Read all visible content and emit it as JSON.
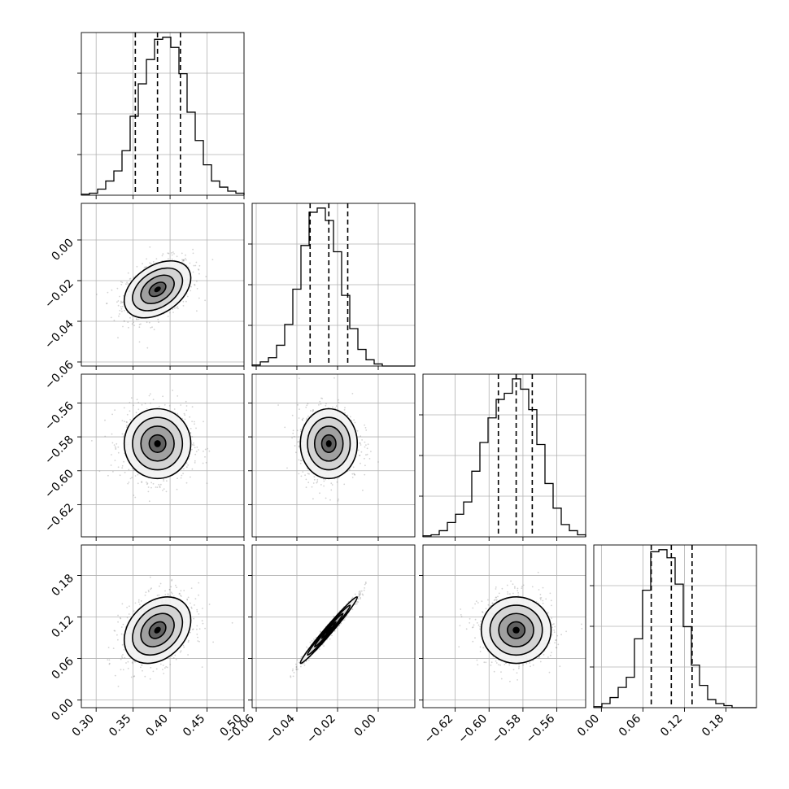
{
  "chart_data": {
    "type": "corner",
    "params": [
      {
        "range": [
          0.28,
          0.5
        ],
        "ticks": [
          0.3,
          0.35,
          0.4,
          0.45,
          0.5
        ],
        "tick_labels": [
          "0.30",
          "0.35",
          "0.40",
          "0.45",
          "0.50"
        ],
        "quantiles": [
          0.353,
          0.383,
          0.414
        ]
      },
      {
        "range": [
          -0.062,
          0.018
        ],
        "ticks": [
          -0.06,
          -0.04,
          -0.02,
          0.0
        ],
        "tick_labels": [
          "−0.06",
          "−0.04",
          "−0.02",
          "0.00"
        ],
        "quantiles": [
          -0.0335,
          -0.0243,
          -0.015
        ]
      },
      {
        "range": [
          -0.639,
          -0.543
        ],
        "ticks": [
          -0.62,
          -0.6,
          -0.58,
          -0.56
        ],
        "tick_labels": [
          "−0.62",
          "−0.60",
          "−0.58",
          "−0.56"
        ],
        "quantiles": [
          -0.5945,
          -0.584,
          -0.5745
        ]
      },
      {
        "range": [
          -0.011,
          0.224
        ],
        "ticks": [
          0.0,
          0.06,
          0.12,
          0.18
        ],
        "tick_labels": [
          "0.00",
          "0.06",
          "0.12",
          "0.18"
        ],
        "quantiles": [
          0.072,
          0.101,
          0.131
        ]
      }
    ],
    "histograms": [
      {
        "counts": [
          0.5,
          1,
          3,
          7,
          12,
          22,
          39,
          55,
          67,
          77,
          78,
          73,
          60,
          41,
          27,
          15,
          7,
          4,
          2,
          1
        ]
      },
      {
        "counts": [
          0.5,
          2,
          4,
          10,
          20,
          37,
          58,
          74,
          76,
          70,
          55,
          34,
          18,
          8,
          3,
          1,
          0,
          0,
          0,
          0
        ]
      },
      {
        "counts": [
          0.5,
          1,
          3,
          7,
          11,
          17,
          32,
          46,
          58,
          67,
          70,
          77,
          72,
          62,
          45,
          26,
          14,
          6,
          3,
          1
        ]
      },
      {
        "counts": [
          0.5,
          2,
          5,
          10,
          15,
          34,
          58,
          77,
          78,
          74,
          61,
          40,
          21,
          11,
          4,
          2,
          1,
          0,
          0,
          0
        ]
      }
    ],
    "pairs": [
      {
        "row": 1,
        "col": 0,
        "mean": [
          0.383,
          -0.0243
        ],
        "sd": [
          0.0225,
          0.007
        ],
        "rho": 0.4
      },
      {
        "row": 2,
        "col": 0,
        "mean": [
          0.383,
          -0.584
        ],
        "sd": [
          0.0225,
          0.0103
        ],
        "rho": 0.0
      },
      {
        "row": 2,
        "col": 1,
        "mean": [
          -0.0243,
          -0.584
        ],
        "sd": [
          0.007,
          0.0103
        ],
        "rho": 0.0
      },
      {
        "row": 3,
        "col": 0,
        "mean": [
          0.383,
          0.101
        ],
        "sd": [
          0.0225,
          0.024
        ],
        "rho": 0.3
      },
      {
        "row": 3,
        "col": 1,
        "mean": [
          -0.0243,
          0.101
        ],
        "sd": [
          0.007,
          0.024
        ],
        "rho": 0.985
      },
      {
        "row": 3,
        "col": 2,
        "mean": [
          -0.584,
          0.101
        ],
        "sd": [
          0.0103,
          0.024
        ],
        "rho": 0.0
      }
    ],
    "contour_levels_sigma": [
      0.5,
      1.0,
      1.5,
      2.0
    ],
    "grid": true,
    "colors": {
      "line": "#000000",
      "scatter": "#808080",
      "grid": "#b0b0b0"
    }
  }
}
